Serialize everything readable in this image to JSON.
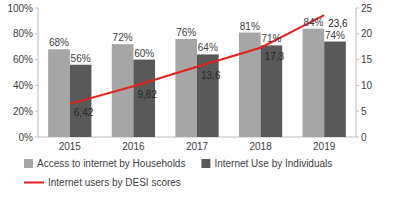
{
  "chart_data": {
    "type": "bar",
    "categories": [
      "2015",
      "2016",
      "2017",
      "2018",
      "2019"
    ],
    "series": [
      {
        "name": "Access to internet by Households",
        "type": "bar",
        "color": "#a6a6a6",
        "values": [
          68,
          72,
          76,
          81,
          84
        ],
        "value_labels": [
          "68%",
          "72%",
          "76%",
          "81%",
          "84%"
        ]
      },
      {
        "name": "Internet Use by Individuals",
        "type": "bar",
        "color": "#595959",
        "values": [
          56,
          60,
          64,
          71,
          74
        ],
        "value_labels": [
          "56%",
          "60%",
          "64%",
          "71%",
          "74%"
        ]
      },
      {
        "name": "Internet users by DESI scores",
        "type": "line",
        "axis": "y2",
        "color": "#e3211c",
        "line_style": "solid",
        "values": [
          6.42,
          9.82,
          13.6,
          17.3,
          23.6
        ],
        "value_labels": [
          "6,42",
          "9,82",
          "13,6",
          "17,3",
          "23,6"
        ]
      }
    ],
    "ylim": [
      0,
      100
    ],
    "yticks": [
      {
        "value": 0,
        "label": "0%"
      },
      {
        "value": 20,
        "label": "20%"
      },
      {
        "value": 40,
        "label": "40%"
      },
      {
        "value": 60,
        "label": "60%"
      },
      {
        "value": 80,
        "label": "80%"
      },
      {
        "value": 100,
        "label": "100%"
      }
    ],
    "y2lim": [
      0,
      25
    ],
    "y2ticks": [
      0,
      5,
      10,
      15,
      20,
      25
    ],
    "grid": false,
    "legend": "bottom",
    "data_labels": true
  }
}
